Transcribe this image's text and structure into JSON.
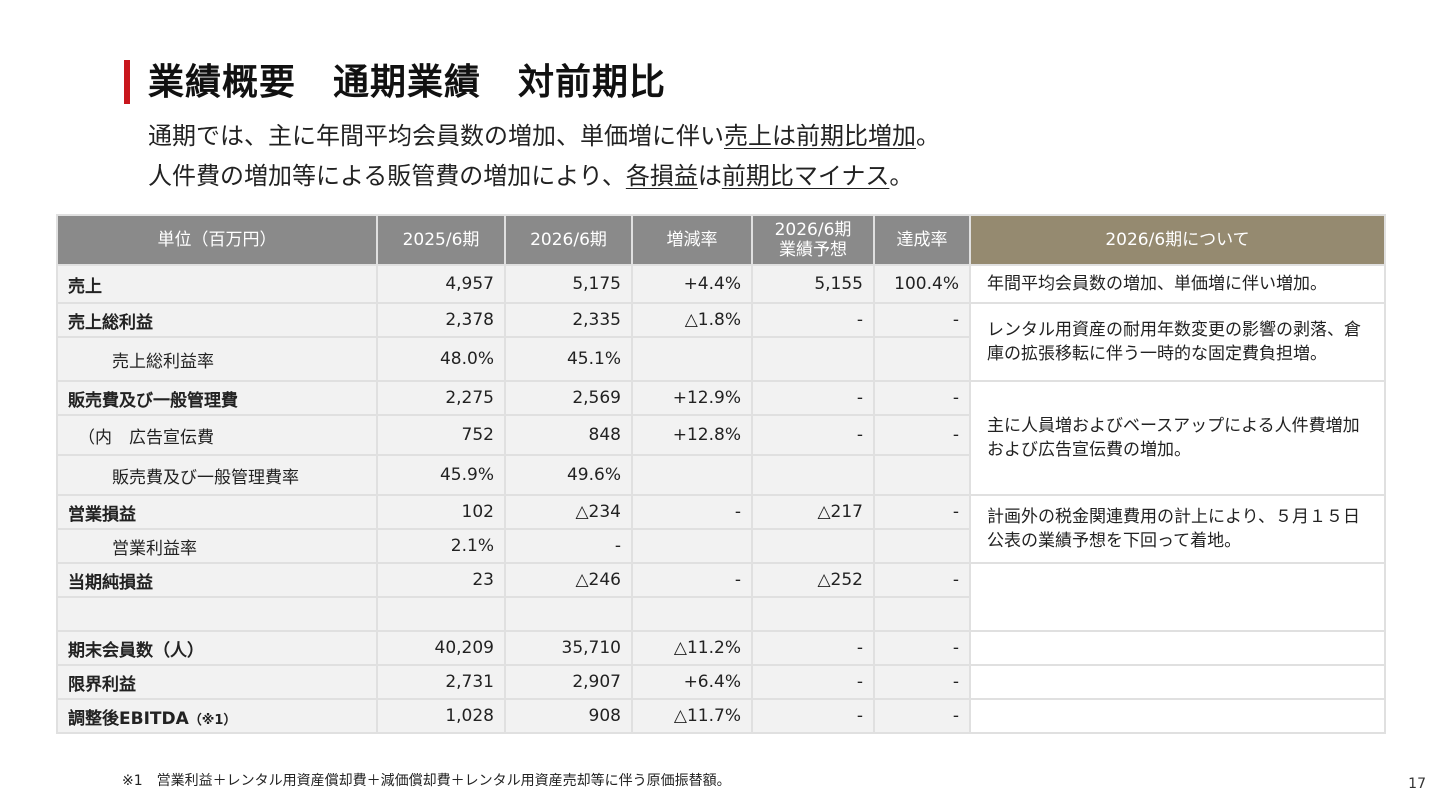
{
  "title": "業績概要　通期業績　対前期比",
  "subtitle": {
    "line1_pre": "通期では、主に年間平均会員数の増加、単価増に伴い",
    "line1_ul": "売上は前期比増加",
    "line1_post": "。",
    "line2_pre": "人件費の増加等による販管費の増加により、",
    "line2_ul1": "各損益",
    "line2_mid": "は",
    "line2_ul2": "前期比マイナス",
    "line2_post": "。"
  },
  "table": {
    "headers": {
      "unit": "単位（百万円）",
      "fy2025": "2025/6期",
      "fy2026": "2026/6期",
      "change": "増減率",
      "forecast_l1": "2026/6期",
      "forecast_l2": "業績予想",
      "achievement": "達成率",
      "notes": "2026/6期について"
    },
    "rows": [
      {
        "label": "売上",
        "fy2025": "4,957",
        "fy2026": "5,175",
        "change": "+4.4%",
        "forecast": "5,155",
        "achievement": "100.4%"
      },
      {
        "label": "売上総利益",
        "fy2025": "2,378",
        "fy2026": "2,335",
        "change": "△1.8%",
        "forecast": "-",
        "achievement": "-"
      },
      {
        "label": "売上総利益率",
        "fy2025": "48.0%",
        "fy2026": "45.1%",
        "change": "",
        "forecast": "",
        "achievement": ""
      },
      {
        "label": "販売費及び一般管理費",
        "fy2025": "2,275",
        "fy2026": "2,569",
        "change": "+12.9%",
        "forecast": "-",
        "achievement": "-"
      },
      {
        "label": "（内　広告宣伝費",
        "fy2025": "752",
        "fy2026": "848",
        "change": "+12.8%",
        "forecast": "-",
        "achievement": "-"
      },
      {
        "label": "販売費及び一般管理費率",
        "fy2025": "45.9%",
        "fy2026": "49.6%",
        "change": "",
        "forecast": "",
        "achievement": ""
      },
      {
        "label": "営業損益",
        "fy2025": "102",
        "fy2026": "△234",
        "change": "-",
        "forecast": "△217",
        "achievement": "-"
      },
      {
        "label": "営業利益率",
        "fy2025": "2.1%",
        "fy2026": "-",
        "change": "",
        "forecast": "",
        "achievement": ""
      },
      {
        "label": "当期純損益",
        "fy2025": "23",
        "fy2026": "△246",
        "change": "-",
        "forecast": "△252",
        "achievement": "-"
      },
      {
        "label": "",
        "fy2025": "",
        "fy2026": "",
        "change": "",
        "forecast": "",
        "achievement": ""
      },
      {
        "label": "期末会員数（人）",
        "fy2025": "40,209",
        "fy2026": "35,710",
        "change": "△11.2%",
        "forecast": "-",
        "achievement": "-"
      },
      {
        "label": "限界利益",
        "fy2025": "2,731",
        "fy2026": "2,907",
        "change": "+6.4%",
        "forecast": "-",
        "achievement": "-"
      },
      {
        "label_main": "調整後EBITDA",
        "label_suffix": "（※1）",
        "fy2025": "1,028",
        "fy2026": "908",
        "change": "△11.7%",
        "forecast": "-",
        "achievement": "-"
      }
    ],
    "notes": {
      "sales": "年間平均会員数の増加、単価増に伴い増加。",
      "gross_profit": "レンタル用資産の耐用年数変更の影響の剥落、倉庫の拡張移転に伴う一時的な固定費負担増。",
      "sga": "主に人員増およびベースアップによる人件費増加および広告宣伝費の増加。",
      "operating": "計画外の税金関連費用の計上により、５月１５日公表の業績予想を下回って着地。"
    }
  },
  "footnote": "※1　営業利益＋レンタル用資産償却費＋減価償却費＋レンタル用資産売却等に伴う原価振替額。",
  "page_number": "17",
  "colors": {
    "accent_red": "#c8161d",
    "header_gray": "#8a8a8a",
    "header_gold": "#958a70",
    "cell_bg": "#f2f2f2"
  }
}
